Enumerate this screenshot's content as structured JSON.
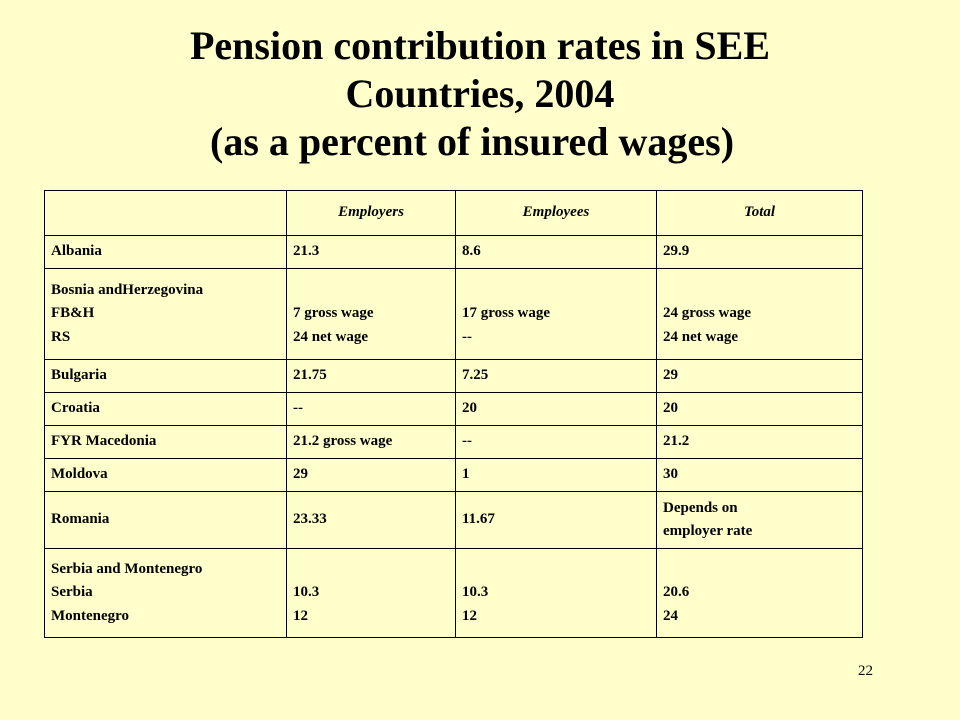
{
  "title": {
    "line1": "Pension contribution rates in SEE",
    "line2": "Countries, 2004",
    "line3": "(as a percent of insured wages)"
  },
  "table": {
    "headers": [
      "",
      "Employers",
      "Employees",
      "Total"
    ],
    "rows": [
      [
        [
          "Albania"
        ],
        [
          "21.3"
        ],
        [
          "8.6"
        ],
        [
          "29.9"
        ]
      ],
      [
        [
          "Bosnia andHerzegovina",
          "FB&H",
          "RS"
        ],
        [
          "",
          "7 gross wage",
          "24 net wage"
        ],
        [
          "",
          "17 gross wage",
          "--"
        ],
        [
          "",
          "24 gross wage",
          "24 net wage"
        ]
      ],
      [
        [
          "Bulgaria"
        ],
        [
          "21.75"
        ],
        [
          "7.25"
        ],
        [
          "29"
        ]
      ],
      [
        [
          "Croatia"
        ],
        [
          "--"
        ],
        [
          "20"
        ],
        [
          "20"
        ]
      ],
      [
        [
          "FYR Macedonia"
        ],
        [
          "21.2 gross wage"
        ],
        [
          " --"
        ],
        [
          "21.2"
        ]
      ],
      [
        [
          "Moldova"
        ],
        [
          "29"
        ],
        [
          "1"
        ],
        [
          "30"
        ]
      ],
      [
        [
          "Romania"
        ],
        [
          "23.33"
        ],
        [
          "11.67"
        ],
        [
          "Depends on",
          "employer rate"
        ]
      ],
      [
        [
          "Serbia and Montenegro",
          "Serbia",
          "Montenegro"
        ],
        [
          "",
          "10.3",
          "12"
        ],
        [
          "",
          "10.3",
          "12"
        ],
        [
          "",
          "20.6",
          "24"
        ]
      ]
    ]
  },
  "page_number": "22"
}
